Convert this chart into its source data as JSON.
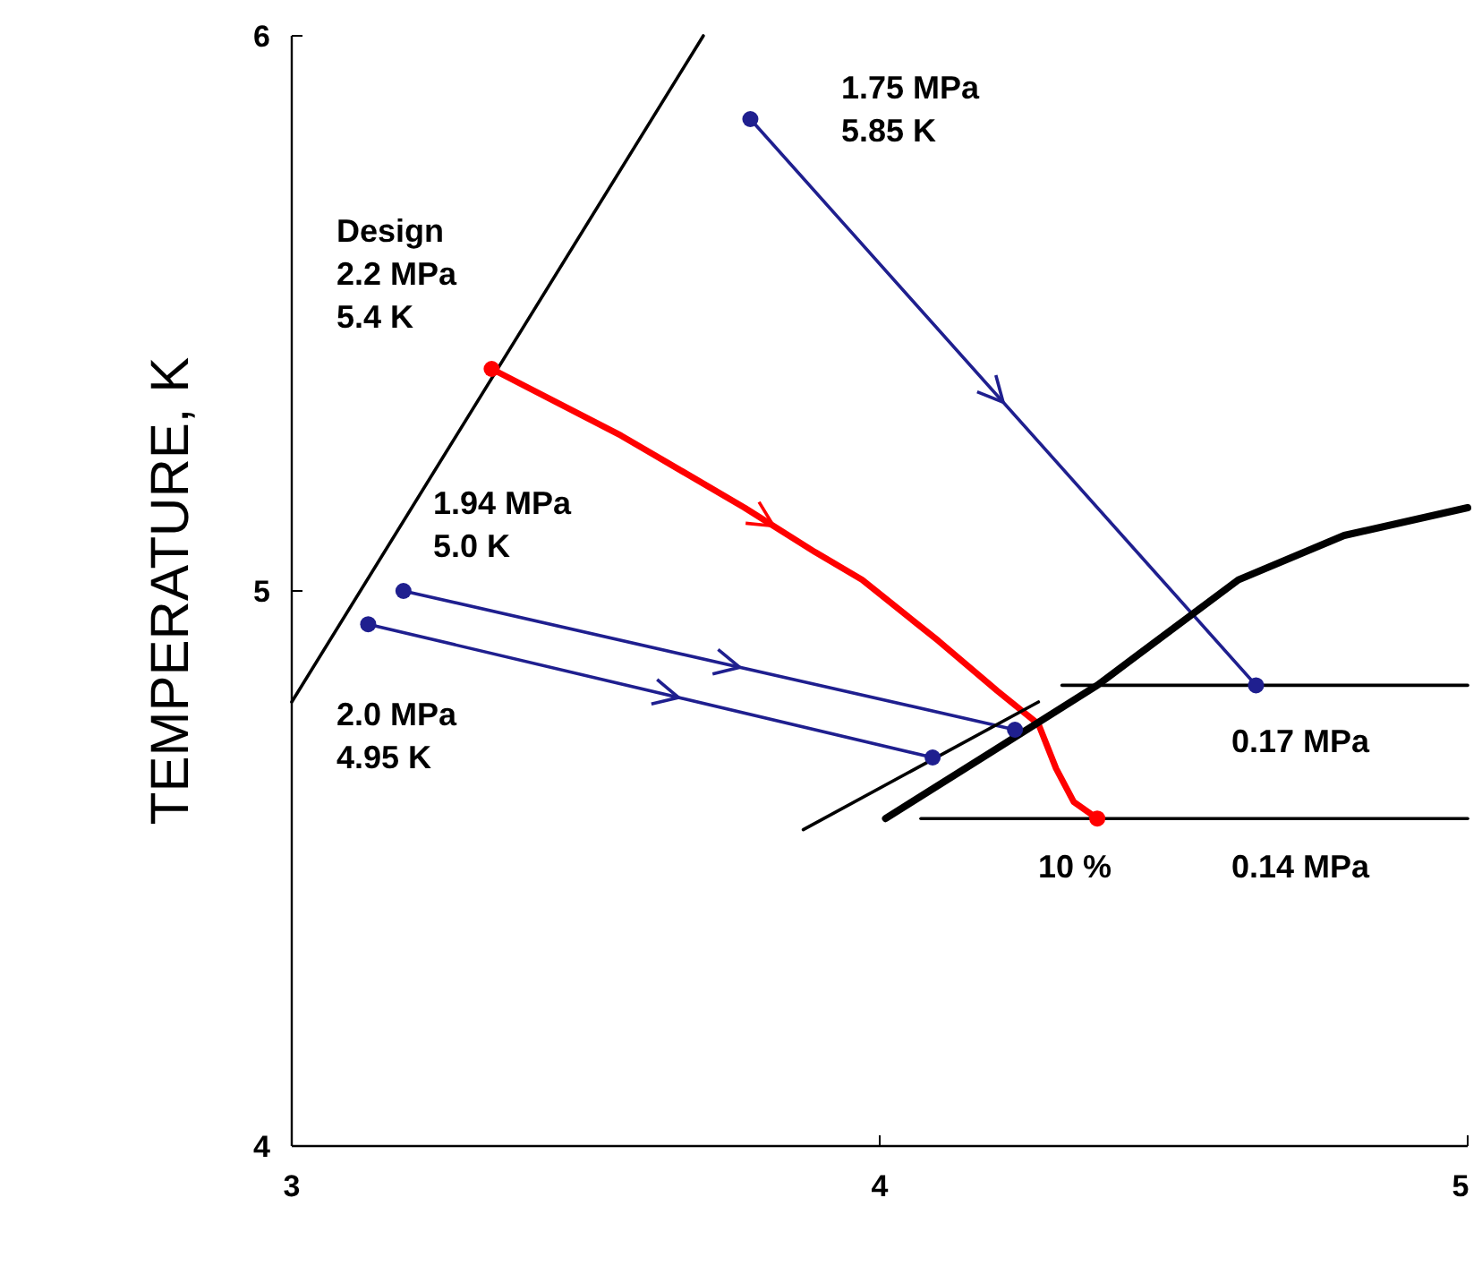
{
  "chart_data": {
    "type": "line",
    "ylabel": "TEMPERATURE, K",
    "xlim": [
      3,
      5
    ],
    "ylim": [
      4,
      6
    ],
    "xticks": [
      3,
      4,
      5
    ],
    "yticks": [
      4,
      5,
      6
    ],
    "grid": false,
    "series": [
      {
        "color": "#1f1f8f",
        "marker": "circle",
        "x": [
          3.78,
          4.64
        ],
        "values": [
          5.85,
          4.83
        ]
      },
      {
        "color": "#ff0000",
        "marker": "none",
        "x": [
          3.34,
          3.56,
          3.77,
          3.89,
          3.97,
          4.1,
          4.2,
          4.27,
          4.3,
          4.33,
          4.37
        ],
        "values": [
          5.4,
          5.28,
          5.15,
          5.07,
          5.02,
          4.91,
          4.82,
          4.76,
          4.68,
          4.62,
          4.59
        ]
      },
      {
        "color": "#1f1f8f",
        "marker": "circle",
        "x": [
          3.19,
          4.23
        ],
        "values": [
          5.0,
          4.75
        ]
      },
      {
        "color": "#1f1f8f",
        "marker": "circle",
        "x": [
          3.13,
          4.09
        ],
        "values": [
          4.94,
          4.7
        ]
      },
      {
        "type": "scatter",
        "color": "#ff0000",
        "marker": "circle",
        "x": [
          3.34,
          4.37
        ],
        "values": [
          5.4,
          4.59
        ]
      },
      {
        "color": "#000000",
        "marker": "none",
        "x": [
          4.01,
          4.19,
          4.37,
          4.61,
          4.79,
          5.0
        ],
        "values": [
          4.59,
          4.71,
          4.83,
          5.02,
          5.1,
          5.15
        ]
      },
      {
        "color": "#000000",
        "marker": "none",
        "x": [
          3.0,
          3.7
        ],
        "values": [
          4.8,
          6.0
        ]
      },
      {
        "color": "#000000",
        "marker": "none",
        "x": [
          3.87,
          4.27
        ],
        "values": [
          4.57,
          4.8
        ]
      },
      {
        "color": "#000000",
        "marker": "none",
        "x": [
          4.31,
          4.5,
          4.75,
          5.0
        ],
        "values": [
          4.83,
          4.83,
          4.83,
          4.83
        ]
      },
      {
        "color": "#000000",
        "marker": "none",
        "x": [
          4.07,
          4.25,
          4.5,
          4.75,
          5.0
        ],
        "values": [
          4.59,
          4.59,
          4.59,
          4.59,
          4.59
        ]
      }
    ],
    "annotations": [
      "1.75 MPa\n5.85 K",
      "Design\n2.2 MPa\n5.4 K",
      "1.94 MPa\n5.0 K",
      "2.0 MPa\n4.95 K",
      "0.17 MPa",
      "0.14 MPa",
      "10 %"
    ]
  }
}
